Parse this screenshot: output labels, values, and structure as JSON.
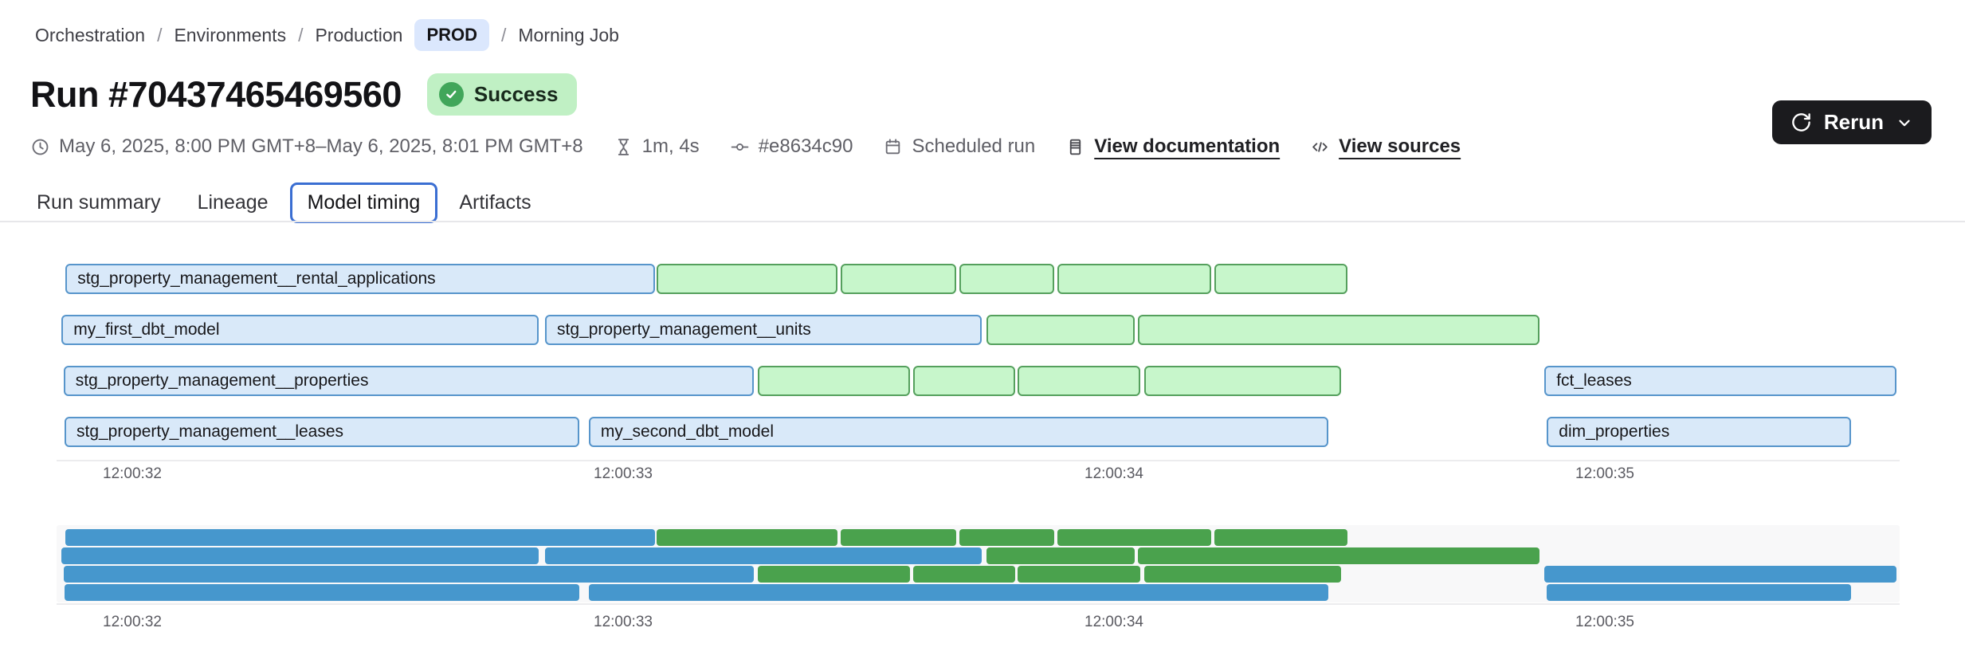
{
  "breadcrumb": {
    "separator": "/",
    "items": [
      "Orchestration",
      "Environments",
      "Production",
      "Morning Job"
    ],
    "env_badge": "PROD"
  },
  "header": {
    "title": "Run #70437465469560",
    "status": "Success"
  },
  "toolbar": {
    "rerun_label": "Rerun"
  },
  "meta": {
    "time_range": "May 6, 2025, 8:00 PM GMT+8–May 6, 2025, 8:01 PM GMT+8",
    "duration": "1m, 4s",
    "commit": "#e8634c90",
    "trigger": "Scheduled run",
    "doc_link": "View documentation",
    "sources_link": "View sources"
  },
  "tabs": {
    "items": [
      "Run summary",
      "Lineage",
      "Model timing",
      "Artifacts"
    ],
    "active": "Model timing"
  },
  "chart_data": {
    "type": "gantt",
    "time_ticks": [
      "12:00:32",
      "12:00:33",
      "12:00:34",
      "12:00:35"
    ],
    "time_unit_seconds": 1,
    "colors": {
      "detail_blue_fill": "#d9e9f9",
      "detail_blue_border": "#5795cb",
      "detail_green_fill": "#c7f6cb",
      "detail_green_border": "#55a05d",
      "minimap_blue": "#4697cd",
      "minimap_green": "#4aa24d"
    },
    "rows": [
      {
        "bars": [
          {
            "label": "stg_property_management__rental_applications",
            "color": "blue",
            "start": -0.136,
            "end": 1.065
          },
          {
            "label": "",
            "color": "green",
            "start": 1.068,
            "end": 1.437
          },
          {
            "label": "",
            "color": "green",
            "start": 1.443,
            "end": 1.679
          },
          {
            "label": "",
            "color": "green",
            "start": 1.685,
            "end": 1.878
          },
          {
            "label": "",
            "color": "green",
            "start": 1.885,
            "end": 2.198
          },
          {
            "label": "",
            "color": "green",
            "start": 2.205,
            "end": 2.476
          }
        ]
      },
      {
        "bars": [
          {
            "label": "my_first_dbt_model",
            "color": "blue",
            "start": -0.144,
            "end": 0.828
          },
          {
            "label": "stg_property_management__units",
            "color": "blue",
            "start": 0.841,
            "end": 1.731
          },
          {
            "label": "",
            "color": "green",
            "start": 1.74,
            "end": 2.042
          },
          {
            "label": "",
            "color": "green",
            "start": 2.049,
            "end": 2.867
          }
        ]
      },
      {
        "bars": [
          {
            "label": "stg_property_management__properties",
            "color": "blue",
            "start": -0.14,
            "end": 1.266
          },
          {
            "label": "",
            "color": "green",
            "start": 1.274,
            "end": 1.584
          },
          {
            "label": "",
            "color": "green",
            "start": 1.591,
            "end": 1.799
          },
          {
            "label": "",
            "color": "green",
            "start": 1.804,
            "end": 2.054
          },
          {
            "label": "",
            "color": "green",
            "start": 2.062,
            "end": 2.463
          },
          {
            "label": "fct_leases",
            "color": "blue",
            "start": 2.877,
            "end": 3.594
          }
        ]
      },
      {
        "bars": [
          {
            "label": "stg_property_management__leases",
            "color": "blue",
            "start": -0.138,
            "end": 0.911
          },
          {
            "label": "my_second_dbt_model",
            "color": "blue",
            "start": 0.93,
            "end": 2.437
          },
          {
            "label": "dim_properties",
            "color": "blue",
            "start": 2.882,
            "end": 3.502
          }
        ]
      }
    ]
  }
}
